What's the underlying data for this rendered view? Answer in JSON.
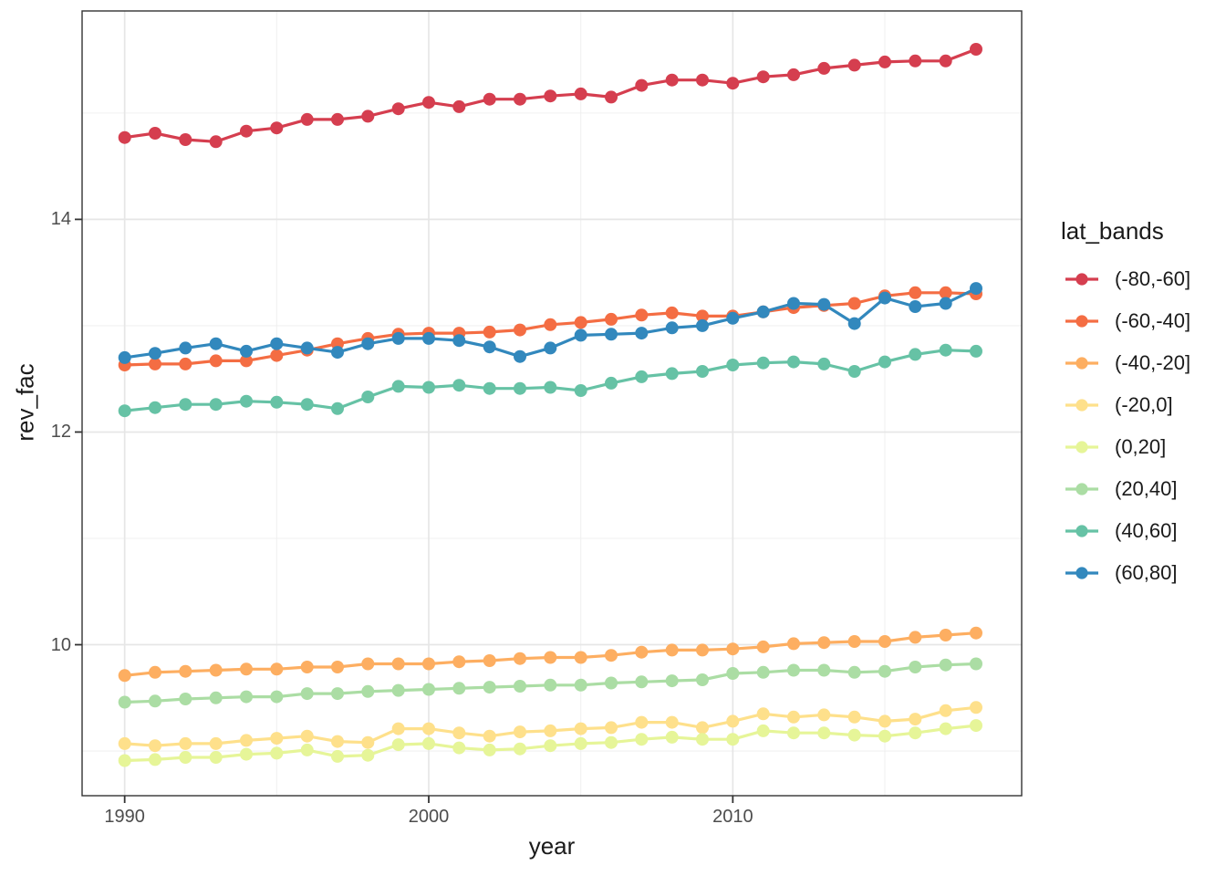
{
  "chart_data": {
    "type": "line",
    "title": "",
    "xlabel": "year",
    "ylabel": "rev_fac",
    "legend_title": "lat_bands",
    "legend_position": "right",
    "grid": true,
    "point_markers": true,
    "xlim": [
      1988.6,
      2019.5
    ],
    "ylim": [
      8.58,
      15.96
    ],
    "x_ticks": [
      1990,
      2000,
      2010
    ],
    "x_minor_ticks": [
      1995,
      2005,
      2015
    ],
    "y_ticks": [
      10,
      12,
      14
    ],
    "y_minor_ticks": [
      9,
      11,
      13,
      15
    ],
    "x": [
      1990,
      1991,
      1992,
      1993,
      1994,
      1995,
      1996,
      1997,
      1998,
      1999,
      2000,
      2001,
      2002,
      2003,
      2004,
      2005,
      2006,
      2007,
      2008,
      2009,
      2010,
      2011,
      2012,
      2013,
      2014,
      2015,
      2016,
      2017,
      2018
    ],
    "series": [
      {
        "name": "(-80,-60]",
        "color": "#d53e4f",
        "values": [
          14.77,
          14.81,
          14.75,
          14.73,
          14.83,
          14.86,
          14.94,
          14.94,
          14.97,
          15.04,
          15.1,
          15.06,
          15.13,
          15.13,
          15.16,
          15.18,
          15.15,
          15.26,
          15.31,
          15.31,
          15.28,
          15.34,
          15.36,
          15.42,
          15.45,
          15.48,
          15.49,
          15.49,
          15.6
        ]
      },
      {
        "name": "(-60,-40]",
        "color": "#f46d43",
        "values": [
          12.63,
          12.64,
          12.64,
          12.67,
          12.67,
          12.72,
          12.77,
          12.83,
          12.88,
          12.92,
          12.93,
          12.93,
          12.94,
          12.96,
          13.01,
          13.03,
          13.06,
          13.1,
          13.12,
          13.09,
          13.09,
          13.13,
          13.17,
          13.19,
          13.21,
          13.28,
          13.31,
          13.31,
          13.3
        ]
      },
      {
        "name": "(-40,-20]",
        "color": "#fdae61",
        "values": [
          9.71,
          9.74,
          9.75,
          9.76,
          9.77,
          9.77,
          9.79,
          9.79,
          9.82,
          9.82,
          9.82,
          9.84,
          9.85,
          9.87,
          9.88,
          9.88,
          9.9,
          9.93,
          9.95,
          9.95,
          9.96,
          9.98,
          10.01,
          10.02,
          10.03,
          10.03,
          10.07,
          10.09,
          10.11
        ]
      },
      {
        "name": "(-20,0]",
        "color": "#fee08b",
        "values": [
          9.07,
          9.05,
          9.07,
          9.07,
          9.1,
          9.12,
          9.14,
          9.09,
          9.08,
          9.21,
          9.21,
          9.17,
          9.14,
          9.18,
          9.19,
          9.21,
          9.22,
          9.27,
          9.27,
          9.22,
          9.28,
          9.35,
          9.32,
          9.34,
          9.32,
          9.28,
          9.3,
          9.38,
          9.41
        ]
      },
      {
        "name": "(0,20]",
        "color": "#e6f598",
        "values": [
          8.91,
          8.92,
          8.94,
          8.94,
          8.97,
          8.98,
          9.01,
          8.95,
          8.96,
          9.06,
          9.07,
          9.03,
          9.01,
          9.02,
          9.05,
          9.07,
          9.08,
          9.11,
          9.13,
          9.11,
          9.11,
          9.19,
          9.17,
          9.17,
          9.15,
          9.14,
          9.17,
          9.21,
          9.24
        ]
      },
      {
        "name": "(20,40]",
        "color": "#abdda4",
        "values": [
          9.46,
          9.47,
          9.49,
          9.5,
          9.51,
          9.51,
          9.54,
          9.54,
          9.56,
          9.57,
          9.58,
          9.59,
          9.6,
          9.61,
          9.62,
          9.62,
          9.64,
          9.65,
          9.66,
          9.67,
          9.73,
          9.74,
          9.76,
          9.76,
          9.74,
          9.75,
          9.79,
          9.81,
          9.82
        ]
      },
      {
        "name": "(40,60]",
        "color": "#66c2a5",
        "values": [
          12.2,
          12.23,
          12.26,
          12.26,
          12.29,
          12.28,
          12.26,
          12.22,
          12.33,
          12.43,
          12.42,
          12.44,
          12.41,
          12.41,
          12.42,
          12.39,
          12.46,
          12.52,
          12.55,
          12.57,
          12.63,
          12.65,
          12.66,
          12.64,
          12.57,
          12.66,
          12.73,
          12.77,
          12.76
        ]
      },
      {
        "name": "(60,80]",
        "color": "#3288bd",
        "values": [
          12.7,
          12.74,
          12.79,
          12.83,
          12.76,
          12.83,
          12.79,
          12.75,
          12.83,
          12.88,
          12.88,
          12.86,
          12.8,
          12.71,
          12.79,
          12.91,
          12.92,
          12.93,
          12.98,
          13.0,
          13.07,
          13.13,
          13.21,
          13.2,
          13.02,
          13.26,
          13.18,
          13.21,
          13.35
        ]
      }
    ],
    "style": {
      "panel_border_color": "#333333",
      "major_grid_color": "#e6e6e6",
      "minor_grid_color": "#f0f0f0",
      "tick_mark_color": "#333333",
      "tick_label_color": "#4d4d4d",
      "background": "#ffffff"
    }
  }
}
